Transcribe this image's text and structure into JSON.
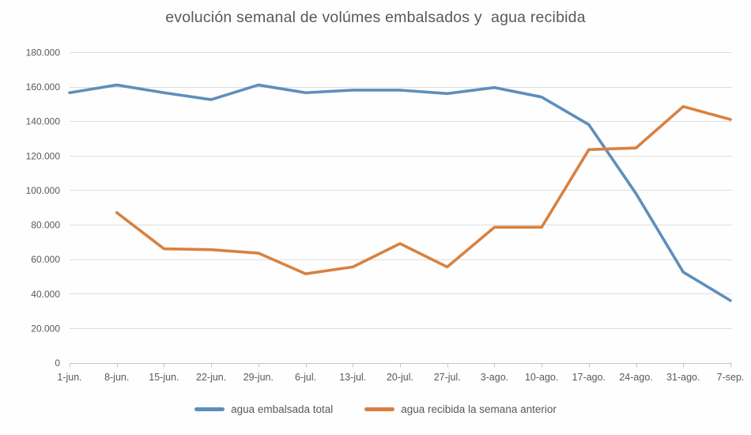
{
  "title": "evolución semanal de volúmes embalsados y  agua recibida",
  "chart_data": {
    "type": "line",
    "title": "evolución semanal de volúmes embalsados y  agua recibida",
    "categories": [
      "1-jun.",
      "8-jun.",
      "15-jun.",
      "22-jun.",
      "29-jun.",
      "6-jul.",
      "13-jul.",
      "20-jul.",
      "27-jul.",
      "3-ago.",
      "10-ago.",
      "17-ago.",
      "24-ago.",
      "31-ago.",
      "7-sep."
    ],
    "series": [
      {
        "name": "agua embalsada total",
        "color": "#5e8fbc",
        "values": [
          156500,
          161000,
          156500,
          152500,
          161000,
          156500,
          158000,
          158000,
          156000,
          159500,
          154000,
          138000,
          98000,
          52500,
          36000
        ]
      },
      {
        "name": "agua recibida la semana anterior",
        "color": "#d9813f",
        "values": [
          null,
          87000,
          66000,
          65500,
          63500,
          51500,
          55500,
          69000,
          55500,
          78500,
          78500,
          123500,
          124500,
          148500,
          141000
        ]
      }
    ],
    "xlabel": "",
    "ylabel": "",
    "ylim": [
      0,
      180000
    ],
    "ytick_step": 20000,
    "ytick_labels": [
      "180.000",
      "160.000",
      "140.000",
      "120.000",
      "100.000",
      "80.000",
      "60.000",
      "40.000",
      "20.000",
      "0"
    ],
    "grid": true,
    "legend_position": "bottom"
  },
  "style_colors": {
    "text": "#595959",
    "gridline": "#dedede",
    "axis_line": "#c6c6c6",
    "background": "#fefefe"
  }
}
